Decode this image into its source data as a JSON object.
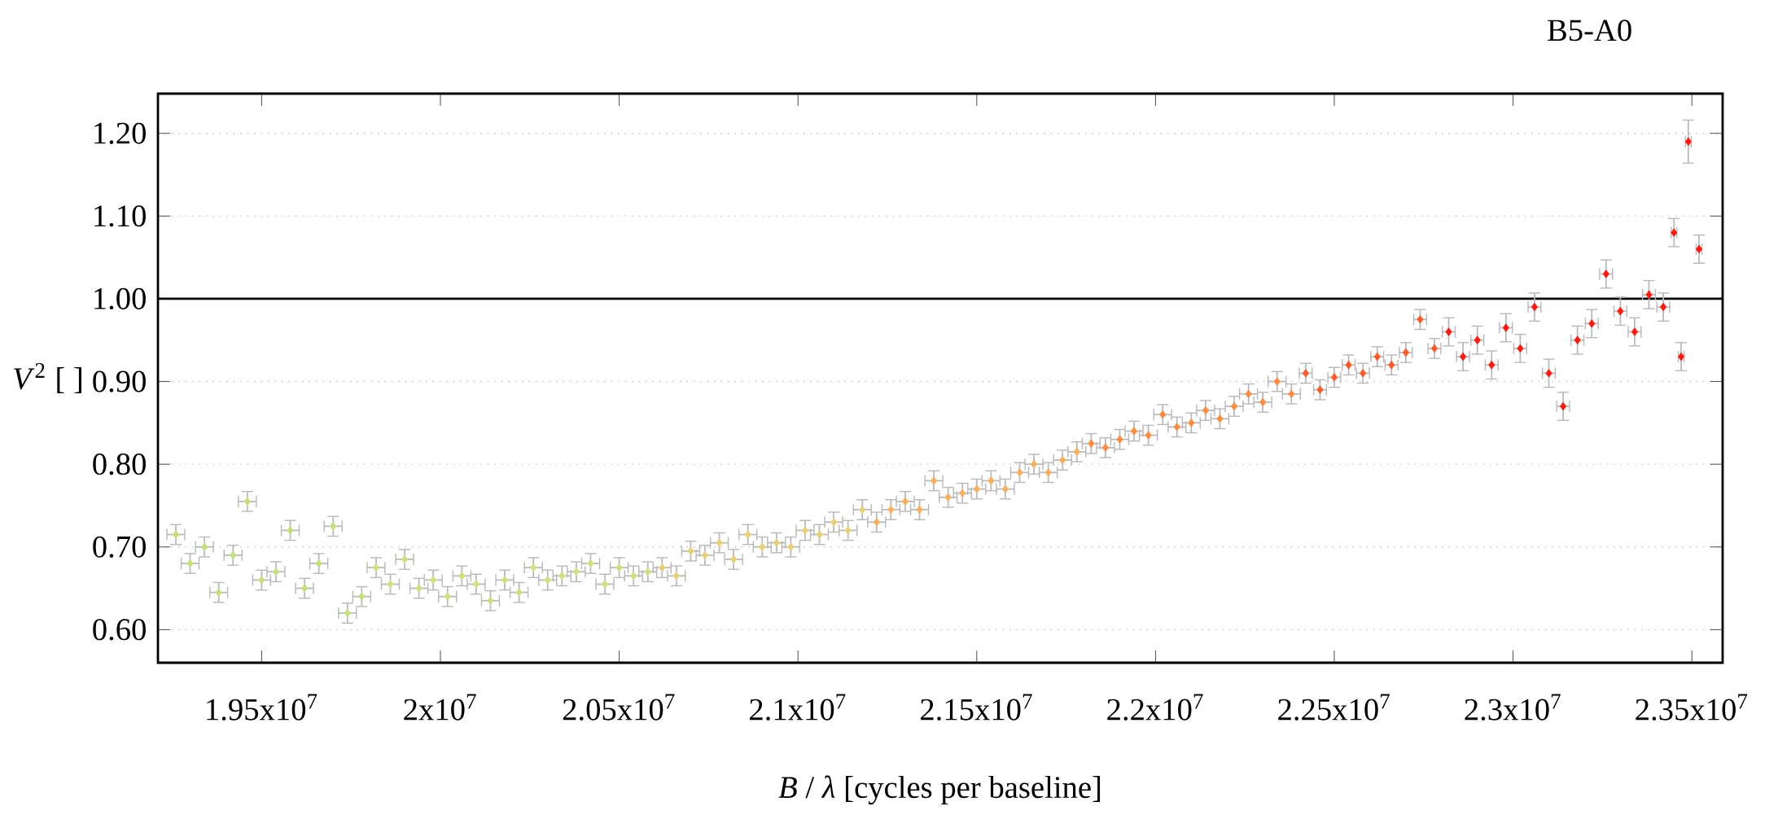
{
  "chart_data": {
    "type": "scatter",
    "title": "B5-A0",
    "xlabel": "*B* / *λ* [cycles per baseline]",
    "ylabel": "*V*$^{2}$ [ ]",
    "xlim": [
      19210000,
      23586000
    ],
    "ylim": [
      0.56,
      1.248
    ],
    "xticks": [
      {
        "value": 19500000,
        "label": "1.95x10$^{7}$"
      },
      {
        "value": 20000000,
        "label": "2x10$^{7}$"
      },
      {
        "value": 20500000,
        "label": "2.05x10$^{7}$"
      },
      {
        "value": 21000000,
        "label": "2.1x10$^{7}$"
      },
      {
        "value": 21500000,
        "label": "2.15x10$^{7}$"
      },
      {
        "value": 22000000,
        "label": "2.2x10$^{7}$"
      },
      {
        "value": 22500000,
        "label": "2.25x10$^{7}$"
      },
      {
        "value": 23000000,
        "label": "2.3x10$^{7}$"
      },
      {
        "value": 23500000,
        "label": "2.35x10$^{7}$"
      }
    ],
    "yticks": [
      {
        "value": 0.6,
        "label": "0.60"
      },
      {
        "value": 0.7,
        "label": "0.70"
      },
      {
        "value": 0.8,
        "label": "0.80"
      },
      {
        "value": 0.9,
        "label": "0.90"
      },
      {
        "value": 1.0,
        "label": "1.00"
      },
      {
        "value": 1.1,
        "label": "1.10"
      },
      {
        "value": 1.2,
        "label": "1.20"
      }
    ],
    "grid": "y",
    "marker": "diamond",
    "ref_lines": [
      {
        "axis": "y",
        "value": 1.0,
        "color": "#000000"
      }
    ],
    "x": [
      19260000,
      19300000,
      19340000,
      19380000,
      19420000,
      19460000,
      19500000,
      19540000,
      19580000,
      19620000,
      19660000,
      19700000,
      19740000,
      19780000,
      19820000,
      19860000,
      19900000,
      19940000,
      19980000,
      20020000,
      20060000,
      20100000,
      20140000,
      20180000,
      20220000,
      20260000,
      20300000,
      20340000,
      20380000,
      20420000,
      20460000,
      20500000,
      20540000,
      20580000,
      20620000,
      20660000,
      20700000,
      20740000,
      20780000,
      20820000,
      20860000,
      20900000,
      20940000,
      20980000,
      21020000,
      21060000,
      21100000,
      21140000,
      21180000,
      21220000,
      21260000,
      21300000,
      21340000,
      21380000,
      21420000,
      21460000,
      21500000,
      21540000,
      21580000,
      21620000,
      21660000,
      21700000,
      21740000,
      21780000,
      21820000,
      21860000,
      21900000,
      21940000,
      21980000,
      22020000,
      22060000,
      22100000,
      22140000,
      22180000,
      22220000,
      22260000,
      22300000,
      22340000,
      22380000,
      22420000,
      22460000,
      22500000,
      22540000,
      22580000,
      22620000,
      22660000,
      22700000,
      22740000,
      22780000,
      22820000,
      22860000,
      22900000,
      22940000,
      22980000,
      23020000,
      23060000,
      23100000,
      23140000,
      23180000,
      23220000,
      23260000,
      23300000,
      23340000,
      23380000,
      23420000,
      23450000,
      23470000,
      23490000,
      23520000
    ],
    "values": [
      0.715,
      0.68,
      0.7,
      0.645,
      0.69,
      0.755,
      0.66,
      0.67,
      0.72,
      0.65,
      0.68,
      0.725,
      0.62,
      0.64,
      0.675,
      0.655,
      0.685,
      0.65,
      0.66,
      0.64,
      0.665,
      0.655,
      0.635,
      0.66,
      0.645,
      0.675,
      0.66,
      0.665,
      0.67,
      0.68,
      0.655,
      0.675,
      0.665,
      0.67,
      0.675,
      0.665,
      0.695,
      0.69,
      0.705,
      0.685,
      0.715,
      0.7,
      0.705,
      0.7,
      0.72,
      0.715,
      0.73,
      0.72,
      0.745,
      0.73,
      0.745,
      0.755,
      0.745,
      0.78,
      0.76,
      0.765,
      0.77,
      0.78,
      0.77,
      0.79,
      0.8,
      0.79,
      0.805,
      0.815,
      0.825,
      0.82,
      0.83,
      0.84,
      0.835,
      0.86,
      0.845,
      0.85,
      0.865,
      0.855,
      0.87,
      0.885,
      0.875,
      0.9,
      0.885,
      0.91,
      0.89,
      0.905,
      0.92,
      0.91,
      0.93,
      0.92,
      0.935,
      0.975,
      0.94,
      0.96,
      0.93,
      0.95,
      0.92,
      0.965,
      0.94,
      0.99,
      0.91,
      0.87,
      0.95,
      0.97,
      1.03,
      0.985,
      0.96,
      1.005,
      0.99,
      1.08,
      0.93,
      1.19,
      1.06
    ],
    "errors": [
      0.012,
      0.012,
      0.012,
      0.012,
      0.012,
      0.012,
      0.012,
      0.012,
      0.012,
      0.012,
      0.012,
      0.012,
      0.012,
      0.012,
      0.012,
      0.012,
      0.012,
      0.012,
      0.012,
      0.012,
      0.012,
      0.012,
      0.012,
      0.012,
      0.012,
      0.012,
      0.012,
      0.012,
      0.012,
      0.012,
      0.012,
      0.012,
      0.012,
      0.012,
      0.012,
      0.012,
      0.012,
      0.012,
      0.012,
      0.012,
      0.012,
      0.012,
      0.012,
      0.012,
      0.012,
      0.012,
      0.012,
      0.012,
      0.012,
      0.012,
      0.012,
      0.012,
      0.012,
      0.012,
      0.012,
      0.012,
      0.012,
      0.012,
      0.012,
      0.012,
      0.012,
      0.012,
      0.012,
      0.012,
      0.012,
      0.012,
      0.012,
      0.012,
      0.012,
      0.012,
      0.012,
      0.012,
      0.012,
      0.012,
      0.012,
      0.012,
      0.012,
      0.012,
      0.012,
      0.012,
      0.012,
      0.012,
      0.012,
      0.012,
      0.012,
      0.012,
      0.012,
      0.012,
      0.012,
      0.017,
      0.017,
      0.017,
      0.017,
      0.017,
      0.017,
      0.017,
      0.017,
      0.017,
      0.017,
      0.017,
      0.017,
      0.017,
      0.017,
      0.017,
      0.017,
      0.017,
      0.017,
      0.026,
      0.017
    ],
    "xerrors": [
      25000,
      25000,
      25000,
      25000,
      25000,
      25000,
      25000,
      25000,
      25000,
      25000,
      25000,
      25000,
      25000,
      25000,
      25000,
      25000,
      25000,
      25000,
      25000,
      25000,
      25000,
      25000,
      25000,
      25000,
      25000,
      25000,
      25000,
      25000,
      25000,
      25000,
      25000,
      25000,
      25000,
      25000,
      25000,
      25000,
      25000,
      25000,
      25000,
      25000,
      25000,
      25000,
      25000,
      25000,
      25000,
      25000,
      25000,
      25000,
      25000,
      25000,
      25000,
      25000,
      25000,
      25000,
      25000,
      25000,
      25000,
      25000,
      25000,
      25000,
      25000,
      25000,
      25000,
      25000,
      25000,
      25000,
      25000,
      25000,
      25000,
      25000,
      25000,
      25000,
      25000,
      25000,
      25000,
      25000,
      25000,
      25000,
      25000,
      18000,
      18000,
      18000,
      18000,
      18000,
      18000,
      18000,
      18000,
      18000,
      18000,
      18000,
      18000,
      18000,
      18000,
      18000,
      18000,
      18000,
      18000,
      18000,
      18000,
      18000,
      18000,
      18000,
      18000,
      18000,
      18000,
      8000,
      8000,
      8000,
      8000
    ],
    "colors": [
      "#c5e07a",
      "#c5e07a",
      "#c5e07a",
      "#c5e07a",
      "#c5e07a",
      "#c5e07a",
      "#c5e07a",
      "#c5e07a",
      "#c5e07a",
      "#c5e07a",
      "#c5e07a",
      "#c5e07a",
      "#c5e07a",
      "#c5e07a",
      "#d0e080",
      "#d0e080",
      "#d0e080",
      "#d0e080",
      "#d0e080",
      "#d0e080",
      "#d0e080",
      "#d0e080",
      "#d0e080",
      "#d0e080",
      "#d0e080",
      "#d0e080",
      "#d0e080",
      "#d0e080",
      "#d0e080",
      "#d0e080",
      "#d0e080",
      "#d0e080",
      "#d0e080",
      "#d0e080",
      "#e8d078",
      "#e8d078",
      "#e8d078",
      "#e8d078",
      "#e8d078",
      "#e8d078",
      "#e8d078",
      "#e8d078",
      "#e8d078",
      "#e8d078",
      "#e8d078",
      "#e8d078",
      "#e8d078",
      "#e8d078",
      "#e8d078",
      "#f8b060",
      "#f8b060",
      "#f8b060",
      "#f8b060",
      "#f8b060",
      "#f8b060",
      "#f8b060",
      "#f8b060",
      "#f8b060",
      "#f8b060",
      "#f8b060",
      "#f8b060",
      "#f8b060",
      "#f8b060",
      "#f8b060",
      "#ff8c40",
      "#ff8c40",
      "#ff8c40",
      "#ff8c40",
      "#ff8c40",
      "#ff8c40",
      "#ff8c40",
      "#ff8c40",
      "#ff8c40",
      "#ff8c40",
      "#ff8c40",
      "#ff8c40",
      "#ff8c40",
      "#ff8c40",
      "#ff8c40",
      "#ff5a28",
      "#ff5a28",
      "#ff5a28",
      "#ff5a28",
      "#ff5a28",
      "#ff5a28",
      "#ff5a28",
      "#ff5a28",
      "#ff5a28",
      "#ff5a28",
      "#ff1a10",
      "#ff1a10",
      "#ff1a10",
      "#ff1a10",
      "#ff1a10",
      "#ff1a10",
      "#ff1a10",
      "#ff1a10",
      "#ff1a10",
      "#ff1a10",
      "#ff1a10",
      "#ff1a10",
      "#ff1a10",
      "#ff1a10",
      "#ff1a10",
      "#ff1a10",
      "#ff1a10",
      "#ff1a10",
      "#ff1a10",
      "#ff1a10"
    ]
  }
}
